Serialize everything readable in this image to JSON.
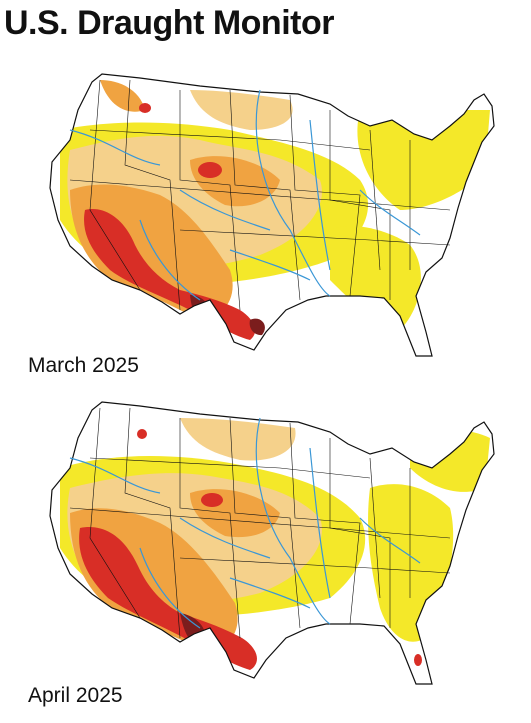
{
  "header": {
    "title": "U.S. Draught Monitor"
  },
  "palette": {
    "land": "#ffffff",
    "abnormally_dry": "#f4e829",
    "moderate": "#f5d18b",
    "severe": "#f0a341",
    "extreme": "#d82e26",
    "exceptional": "#7b1d1d",
    "rivers": "#3a97d6",
    "borders": "#111111"
  },
  "maps": [
    {
      "id": "march",
      "label": "March 2025"
    },
    {
      "id": "april",
      "label": "April 2025"
    }
  ]
}
